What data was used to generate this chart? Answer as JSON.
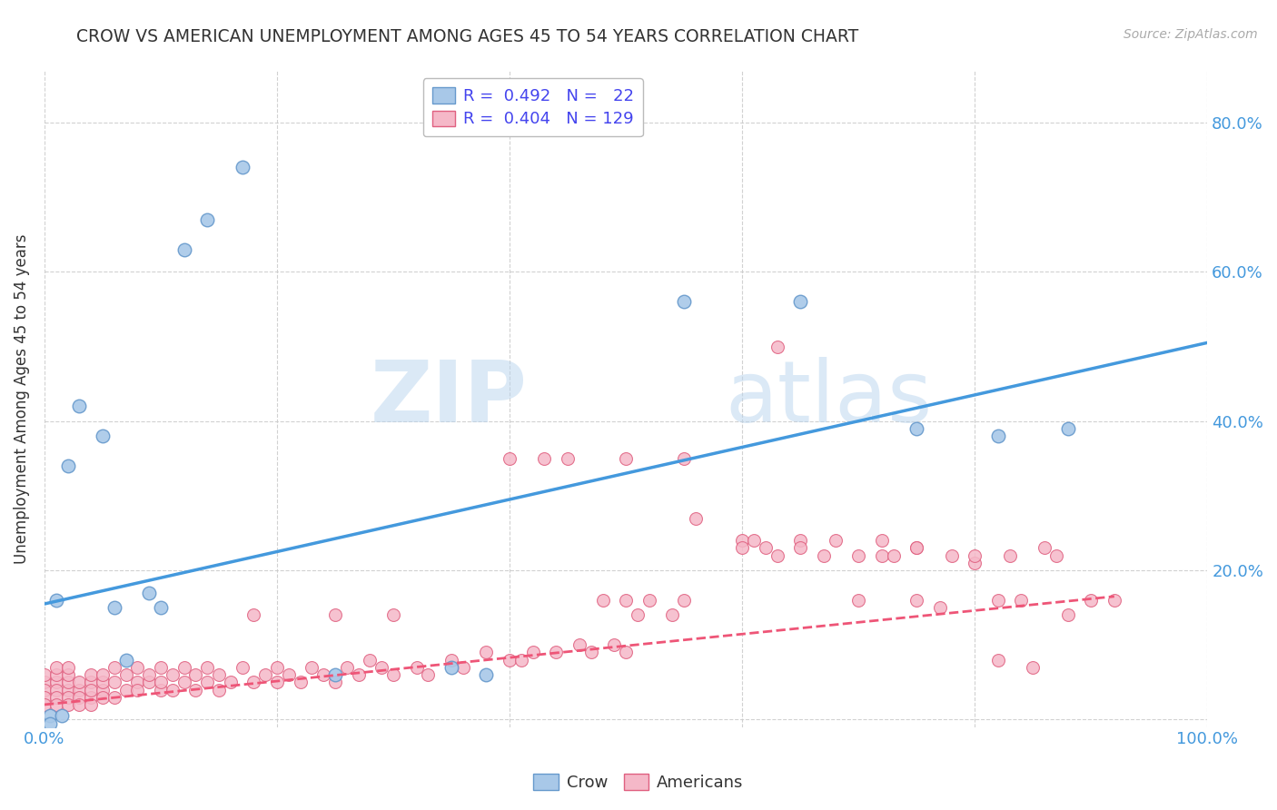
{
  "title": "CROW VS AMERICAN UNEMPLOYMENT AMONG AGES 45 TO 54 YEARS CORRELATION CHART",
  "source": "Source: ZipAtlas.com",
  "ylabel": "Unemployment Among Ages 45 to 54 years",
  "xlim": [
    0.0,
    1.0
  ],
  "ylim": [
    -0.01,
    0.87
  ],
  "xticks": [
    0.0,
    0.2,
    0.4,
    0.6,
    0.8,
    1.0
  ],
  "xtick_labels": [
    "0.0%",
    "",
    "",
    "",
    "",
    "100.0%"
  ],
  "ytick_positions": [
    0.0,
    0.2,
    0.4,
    0.6,
    0.8
  ],
  "ytick_labels_left": [
    "",
    "",
    "",
    "",
    ""
  ],
  "ytick_labels_right": [
    "",
    "20.0%",
    "40.0%",
    "60.0%",
    "80.0%"
  ],
  "crow_color": "#a8c8e8",
  "crow_edge_color": "#6699cc",
  "americans_color": "#f5b8c8",
  "americans_edge_color": "#e06080",
  "crow_line_color": "#4499dd",
  "americans_line_color": "#ee5577",
  "crow_R": 0.492,
  "crow_N": 22,
  "americans_R": 0.404,
  "americans_N": 129,
  "legend_crow": "Crow",
  "legend_americans": "Americans",
  "crow_scatter_x": [
    0.005,
    0.01,
    0.015,
    0.02,
    0.03,
    0.05,
    0.06,
    0.07,
    0.09,
    0.1,
    0.12,
    0.14,
    0.17,
    0.25,
    0.35,
    0.38,
    0.55,
    0.65,
    0.75,
    0.82,
    0.88,
    0.005
  ],
  "crow_scatter_y": [
    0.005,
    0.16,
    0.005,
    0.34,
    0.42,
    0.38,
    0.15,
    0.08,
    0.17,
    0.15,
    0.63,
    0.67,
    0.74,
    0.06,
    0.07,
    0.06,
    0.56,
    0.56,
    0.39,
    0.38,
    0.39,
    -0.005
  ],
  "crow_line_x": [
    0.0,
    1.0
  ],
  "crow_line_y": [
    0.155,
    0.505
  ],
  "americans_line_x": [
    0.0,
    1.0
  ],
  "americans_line_y": [
    0.02,
    0.165
  ],
  "americans_scatter_x": [
    0.0,
    0.0,
    0.0,
    0.0,
    0.0,
    0.01,
    0.01,
    0.01,
    0.01,
    0.01,
    0.01,
    0.02,
    0.02,
    0.02,
    0.02,
    0.02,
    0.02,
    0.03,
    0.03,
    0.03,
    0.03,
    0.04,
    0.04,
    0.04,
    0.04,
    0.04,
    0.05,
    0.05,
    0.05,
    0.05,
    0.06,
    0.06,
    0.06,
    0.07,
    0.07,
    0.08,
    0.08,
    0.08,
    0.09,
    0.09,
    0.1,
    0.1,
    0.1,
    0.11,
    0.11,
    0.12,
    0.12,
    0.13,
    0.13,
    0.14,
    0.14,
    0.15,
    0.15,
    0.16,
    0.17,
    0.18,
    0.18,
    0.19,
    0.2,
    0.2,
    0.21,
    0.22,
    0.23,
    0.24,
    0.25,
    0.25,
    0.26,
    0.27,
    0.28,
    0.29,
    0.3,
    0.3,
    0.32,
    0.33,
    0.35,
    0.36,
    0.38,
    0.4,
    0.4,
    0.41,
    0.42,
    0.43,
    0.44,
    0.45,
    0.46,
    0.47,
    0.48,
    0.49,
    0.5,
    0.5,
    0.5,
    0.51,
    0.52,
    0.54,
    0.55,
    0.55,
    0.56,
    0.6,
    0.6,
    0.61,
    0.62,
    0.63,
    0.63,
    0.65,
    0.65,
    0.67,
    0.68,
    0.7,
    0.7,
    0.72,
    0.72,
    0.73,
    0.75,
    0.75,
    0.75,
    0.77,
    0.78,
    0.8,
    0.8,
    0.82,
    0.82,
    0.83,
    0.84,
    0.85,
    0.86,
    0.87,
    0.88,
    0.9,
    0.92
  ],
  "americans_scatter_y": [
    0.05,
    0.04,
    0.03,
    0.06,
    0.02,
    0.05,
    0.04,
    0.06,
    0.03,
    0.07,
    0.02,
    0.04,
    0.05,
    0.03,
    0.06,
    0.02,
    0.07,
    0.04,
    0.03,
    0.05,
    0.02,
    0.05,
    0.03,
    0.04,
    0.06,
    0.02,
    0.04,
    0.05,
    0.03,
    0.06,
    0.05,
    0.03,
    0.07,
    0.04,
    0.06,
    0.05,
    0.04,
    0.07,
    0.05,
    0.06,
    0.04,
    0.07,
    0.05,
    0.06,
    0.04,
    0.05,
    0.07,
    0.06,
    0.04,
    0.05,
    0.07,
    0.06,
    0.04,
    0.05,
    0.07,
    0.05,
    0.14,
    0.06,
    0.05,
    0.07,
    0.06,
    0.05,
    0.07,
    0.06,
    0.05,
    0.14,
    0.07,
    0.06,
    0.08,
    0.07,
    0.06,
    0.14,
    0.07,
    0.06,
    0.08,
    0.07,
    0.09,
    0.08,
    0.35,
    0.08,
    0.09,
    0.35,
    0.09,
    0.35,
    0.1,
    0.09,
    0.16,
    0.1,
    0.35,
    0.16,
    0.09,
    0.14,
    0.16,
    0.14,
    0.35,
    0.16,
    0.27,
    0.24,
    0.23,
    0.24,
    0.23,
    0.5,
    0.22,
    0.24,
    0.23,
    0.22,
    0.24,
    0.16,
    0.22,
    0.22,
    0.24,
    0.22,
    0.16,
    0.23,
    0.23,
    0.15,
    0.22,
    0.21,
    0.22,
    0.08,
    0.16,
    0.22,
    0.16,
    0.07,
    0.23,
    0.22,
    0.14,
    0.16,
    0.16
  ],
  "watermark_zip": "ZIP",
  "watermark_atlas": "atlas",
  "background_color": "#ffffff",
  "grid_color": "#cccccc",
  "title_color": "#333333",
  "axis_tick_color": "#4499dd",
  "marker_size": 100
}
